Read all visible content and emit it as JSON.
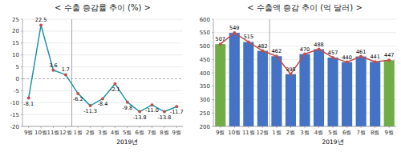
{
  "chart_data": [
    {
      "type": "line",
      "title": "< 수출 증감률 추이 (%) >",
      "categories": [
        "9월",
        "10월",
        "11월",
        "12월",
        "1월",
        "2월",
        "3월",
        "4월",
        "5월",
        "6월",
        "7월",
        "8월",
        "9월"
      ],
      "series": [
        {
          "type": "line",
          "color": "#2196a8",
          "values": [
            -8.1,
            22.5,
            3.6,
            1.7,
            -6.2,
            -11.3,
            -8.4,
            -2.1,
            -9.8,
            -13.8,
            -11.0,
            -13.8,
            -11.7
          ],
          "value_labels": [
            "-8.1",
            "22.5",
            "3.6",
            "1.7",
            "-6.2",
            "-11.3",
            "-8.4",
            "-2.1",
            "-9.8",
            "-13.8",
            "-11.0",
            "-13.8",
            "-11.7"
          ]
        },
        {
          "type": "scatter",
          "color": "#c0504d",
          "marker": "circle",
          "values": [
            -8.1,
            22.5,
            3.6,
            1.7,
            -6.2,
            -11.3,
            -8.4,
            -2.1,
            -9.8,
            -13.8,
            -11.0,
            -13.8,
            -11.7
          ]
        }
      ],
      "ylim": [
        -20.0,
        25.0
      ],
      "yticks": [
        -20,
        -15,
        -10,
        -5,
        0,
        5,
        10,
        15,
        20,
        25
      ],
      "annotations": [
        "2019년"
      ],
      "data_labels": true,
      "grid": true
    },
    {
      "type": "bar",
      "title": "< 수출액 증감 추이 (억 달러) >",
      "categories": [
        "9월",
        "10월",
        "11월",
        "12월",
        "1월",
        "2월",
        "3월",
        "4월",
        "5월",
        "6월",
        "7월",
        "8월",
        "9월"
      ],
      "series": [
        {
          "type": "bar",
          "colors": [
            "#70ad47",
            "#4472c4",
            "#4472c4",
            "#4472c4",
            "#4472c4",
            "#4472c4",
            "#4472c4",
            "#4472c4",
            "#4472c4",
            "#4472c4",
            "#4472c4",
            "#4472c4",
            "#70ad47"
          ],
          "values": [
            507,
            549,
            515,
            482,
            462,
            395,
            470,
            488,
            457,
            440,
            461,
            441,
            447
          ]
        },
        {
          "type": "line",
          "color": "#c0504d",
          "marker": "circle",
          "values": [
            507,
            549,
            515,
            482,
            462,
            395,
            470,
            488,
            457,
            440,
            461,
            441,
            447
          ]
        }
      ],
      "ylim": [
        200,
        600
      ],
      "yticks": [
        200,
        250,
        300,
        350,
        400,
        450,
        500,
        550,
        600
      ],
      "annotations": [
        "2019년"
      ],
      "data_labels": true,
      "grid": true
    }
  ]
}
